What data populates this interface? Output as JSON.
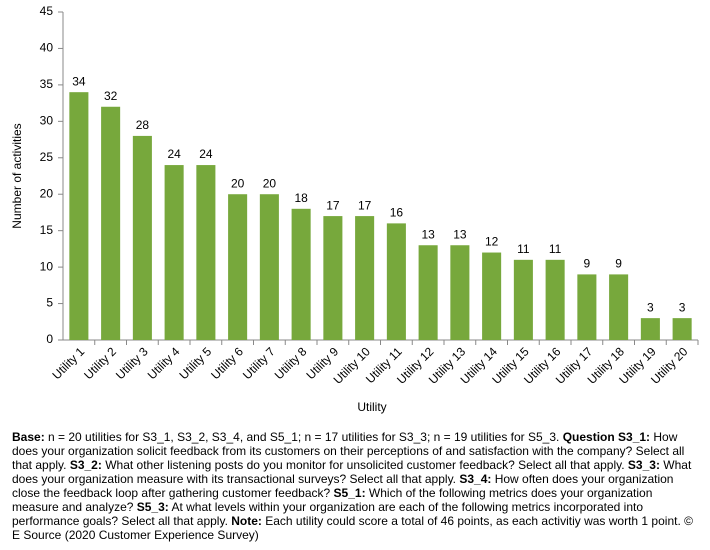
{
  "chart_data": {
    "type": "bar",
    "x_label": "Utility",
    "y_label": "Number of activities",
    "categories": [
      "Utility 1",
      "Utility 2",
      "Utility 3",
      "Utility 4",
      "Utility 5",
      "Utility 6",
      "Utility 7",
      "Utility 8",
      "Utility 9",
      "Utility 10",
      "Utility 11",
      "Utility 12",
      "Utility 13",
      "Utility 14",
      "Utility 15",
      "Utility 16",
      "Utility 17",
      "Utility 18",
      "Utility 19",
      "Utility 20"
    ],
    "values": [
      34,
      32,
      28,
      24,
      24,
      20,
      20,
      18,
      17,
      17,
      16,
      13,
      13,
      12,
      11,
      11,
      9,
      9,
      3,
      3
    ],
    "color": "#77a83c",
    "ylim": [
      0,
      45
    ],
    "yticks": [
      0,
      5,
      10,
      15,
      20,
      25,
      30,
      35,
      40,
      45
    ],
    "grid": false
  },
  "footnote": [
    {
      "text": "Base:",
      "bold": true
    },
    {
      "text": " n = 20 utilities for S3_1, S3_2, S3_4, and S5_1; n = 17 utilities for S3_3; n = 19 utilities for S5_3. ",
      "bold": false
    },
    {
      "text": "Question S3_1:",
      "bold": true
    },
    {
      "text": " How does your organization solicit feedback from its customers on their perceptions of and satisfaction with the company? Select all that apply. ",
      "bold": false
    },
    {
      "text": "S3_2:",
      "bold": true
    },
    {
      "text": " What other listening posts do you monitor for unsolicited customer feedback? Select all that apply. ",
      "bold": false
    },
    {
      "text": "S3_3:",
      "bold": true
    },
    {
      "text": " What does your organization measure with its transactional surveys? Select all that apply. ",
      "bold": false
    },
    {
      "text": "S3_4:",
      "bold": true
    },
    {
      "text": " How often does your organization close the feedback loop after gathering customer feedback? ",
      "bold": false
    },
    {
      "text": "S5_1:",
      "bold": true
    },
    {
      "text": " Which of the following metrics does your organization measure and analyze? ",
      "bold": false
    },
    {
      "text": "S5_3:",
      "bold": true
    },
    {
      "text": " At what levels within your organization are each of the following metrics incorporated into performance goals? Select all that apply. ",
      "bold": false
    },
    {
      "text": "Note:",
      "bold": true
    },
    {
      "text": " Each utility could score a total of 46 points, as each activitiy was worth 1 point. © E Source (2020 Customer Experience Survey)",
      "bold": false
    }
  ]
}
